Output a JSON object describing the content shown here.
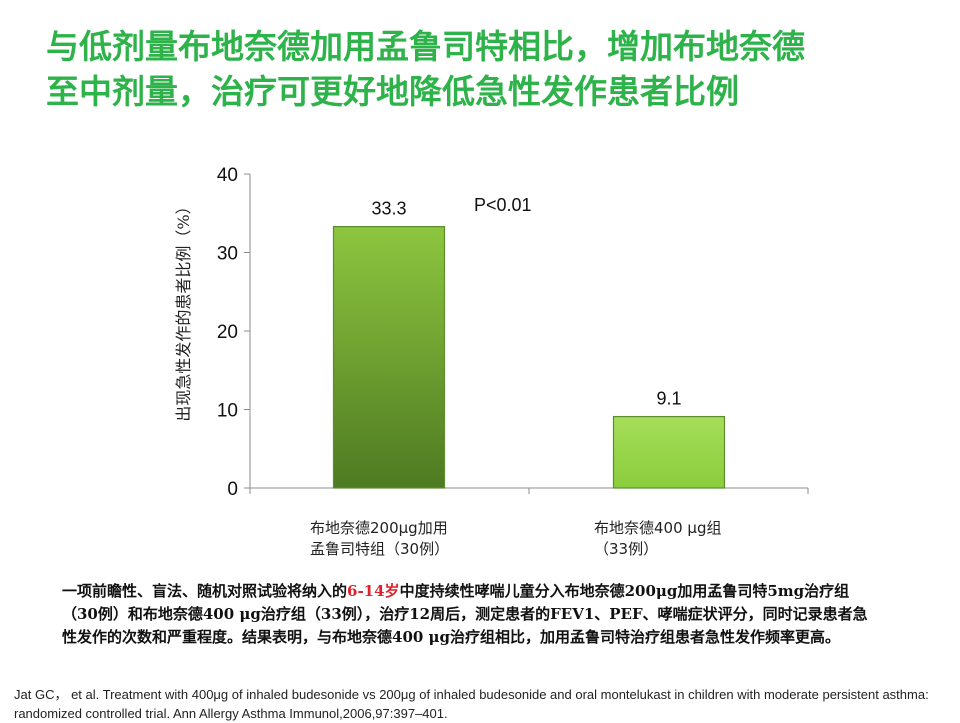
{
  "title": {
    "line1": "与低剂量布地奈德加用孟鲁司特相比，增加布地奈德",
    "line2": "至中剂量，治疗可更好地降低急性发作患者比例"
  },
  "chart_data": {
    "type": "bar",
    "categories": [
      "布地奈德200μg加用\n孟鲁司特组（30例）",
      "布地奈德400 μg组\n（33例）"
    ],
    "values": [
      33.3,
      9.1
    ],
    "data_labels": [
      "33.3",
      "9.1"
    ],
    "ylabel": "出现急性发作的患者比例（%）",
    "xlabel": "",
    "ylim": [
      0,
      40
    ],
    "yticks": [
      0,
      10,
      20,
      30,
      40
    ],
    "grid": false,
    "annotation": "P<0.01",
    "colors": {
      "bar_top": "#8dc63f",
      "bar_bottom": "#4e7a22",
      "bar_edge": "#5d8c2e",
      "bar2_top": "#a6dd5a",
      "bar2_bottom": "#8acd3c"
    }
  },
  "category_labels": {
    "c1_line1": "布地奈德200μg加用",
    "c1_line2": "孟鲁司特组（30例）",
    "c2_line1": "布地奈德400 μg组",
    "c2_line2": "（33例）"
  },
  "description": {
    "part1": "一项前瞻性、盲法、随机对照试验将纳入的",
    "highlight": "6-14岁",
    "part2": "中度持续性哮喘儿童分入布地奈德200μg加用孟鲁司特5mg治疗组（30例）和布地奈德400 μg治疗组（33例），治疗12周后，测定患者的FEV1、PEF、哮喘症状评分，同时记录患者急性发作的次数和严重程度。结果表明，与布地奈德400 μg治疗组相比，加用孟鲁司特治疗组患者急性发作频率更高。"
  },
  "citation": "Jat GC， et al. Treatment with 400μg of inhaled budesonide vs 200μg of inhaled budesonide and oral montelukast in children with moderate persistent asthma: randomized controlled trial. Ann Allergy Asthma Immunol,2006,97:397–401.",
  "colors": {
    "title": "#2db34a",
    "highlight": "#e0202a"
  }
}
